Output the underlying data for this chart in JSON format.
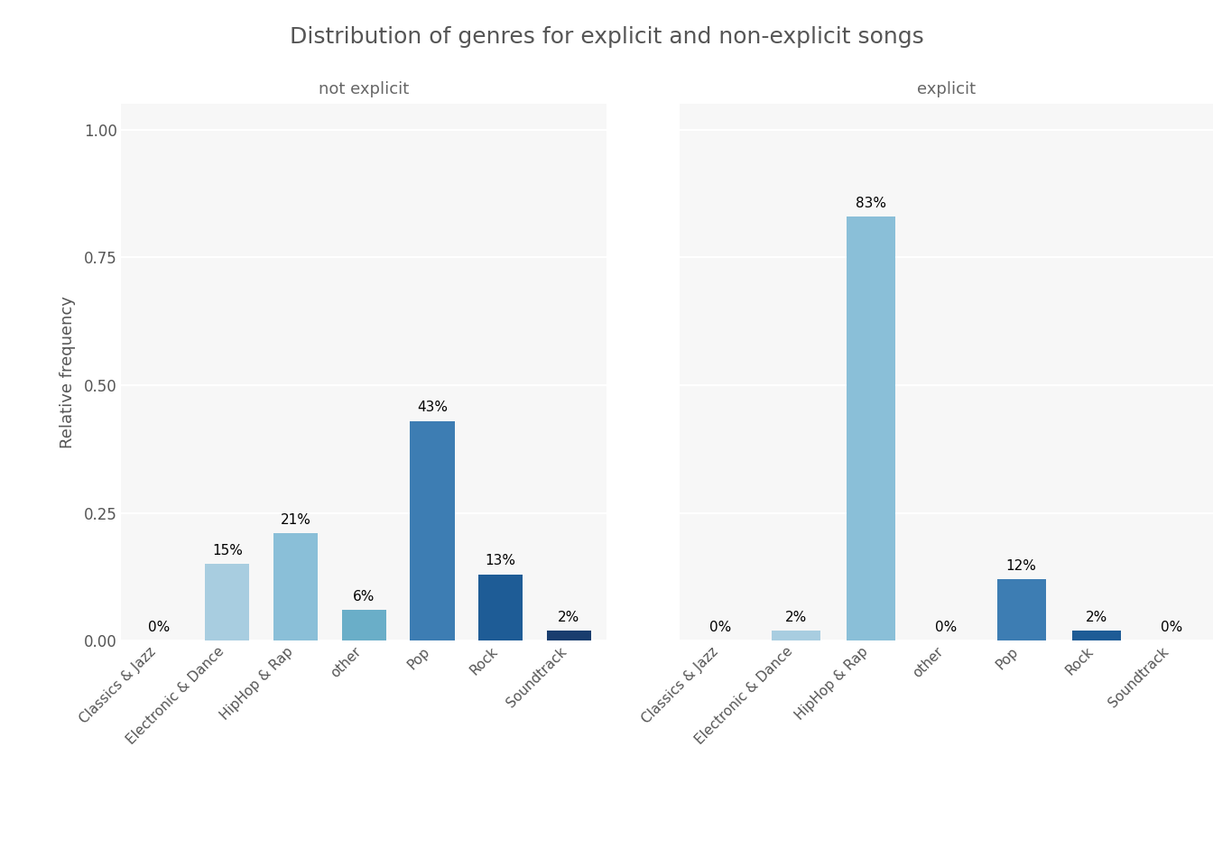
{
  "title": "Distribution of genres for explicit and non-explicit songs",
  "ylabel": "Relative frequency",
  "facets": [
    "not explicit",
    "explicit"
  ],
  "categories": [
    "Classics & Jazz",
    "Electronic & Dance",
    "HipHop & Rap",
    "other",
    "Pop",
    "Rock",
    "Soundtrack"
  ],
  "values": {
    "not explicit": [
      0.0,
      0.15,
      0.21,
      0.06,
      0.43,
      0.13,
      0.02
    ],
    "explicit": [
      0.0,
      0.02,
      0.83,
      0.0,
      0.12,
      0.02,
      0.0
    ]
  },
  "labels": {
    "not explicit": [
      "0%",
      "15%",
      "21%",
      "6%",
      "43%",
      "13%",
      "2%"
    ],
    "explicit": [
      "0%",
      "2%",
      "83%",
      "0%",
      "12%",
      "2%",
      "0%"
    ]
  },
  "category_colors": [
    "#d4e4f0",
    "#a8cde0",
    "#8abfd8",
    "#6aaec8",
    "#3d7db3",
    "#1e5c96",
    "#193d6e"
  ],
  "ylim": [
    0,
    1.05
  ],
  "yticks": [
    0.0,
    0.25,
    0.5,
    0.75,
    1.0
  ],
  "ytick_labels": [
    "0.00",
    "0.25",
    "0.50",
    "0.75",
    "1.00"
  ],
  "bg_color": "#ffffff",
  "panel_bg": "#f7f7f7",
  "grid_color": "#ffffff",
  "title_fontsize": 18,
  "facet_label_fontsize": 13,
  "bar_label_fontsize": 11,
  "axis_label_fontsize": 13,
  "tick_fontsize": 12
}
